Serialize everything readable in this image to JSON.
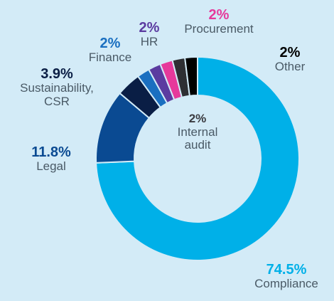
{
  "chart_data": {
    "type": "donut",
    "categories": [
      "Compliance",
      "Legal",
      "Sustainability, CSR",
      "Finance",
      "HR",
      "Procurement",
      "Internal audit",
      "Other"
    ],
    "values": [
      74.5,
      11.8,
      3.9,
      2,
      2,
      2,
      2,
      2
    ],
    "value_labels": [
      "74.5%",
      "11.8%",
      "3.9%",
      "2%",
      "2%",
      "2%",
      "2%",
      "2%"
    ],
    "colors": [
      "#00b0e8",
      "#0a4a92",
      "#0a1e45",
      "#1a6fc0",
      "#5b3ba0",
      "#e6399b",
      "#2e2f33",
      "#000000"
    ]
  }
}
